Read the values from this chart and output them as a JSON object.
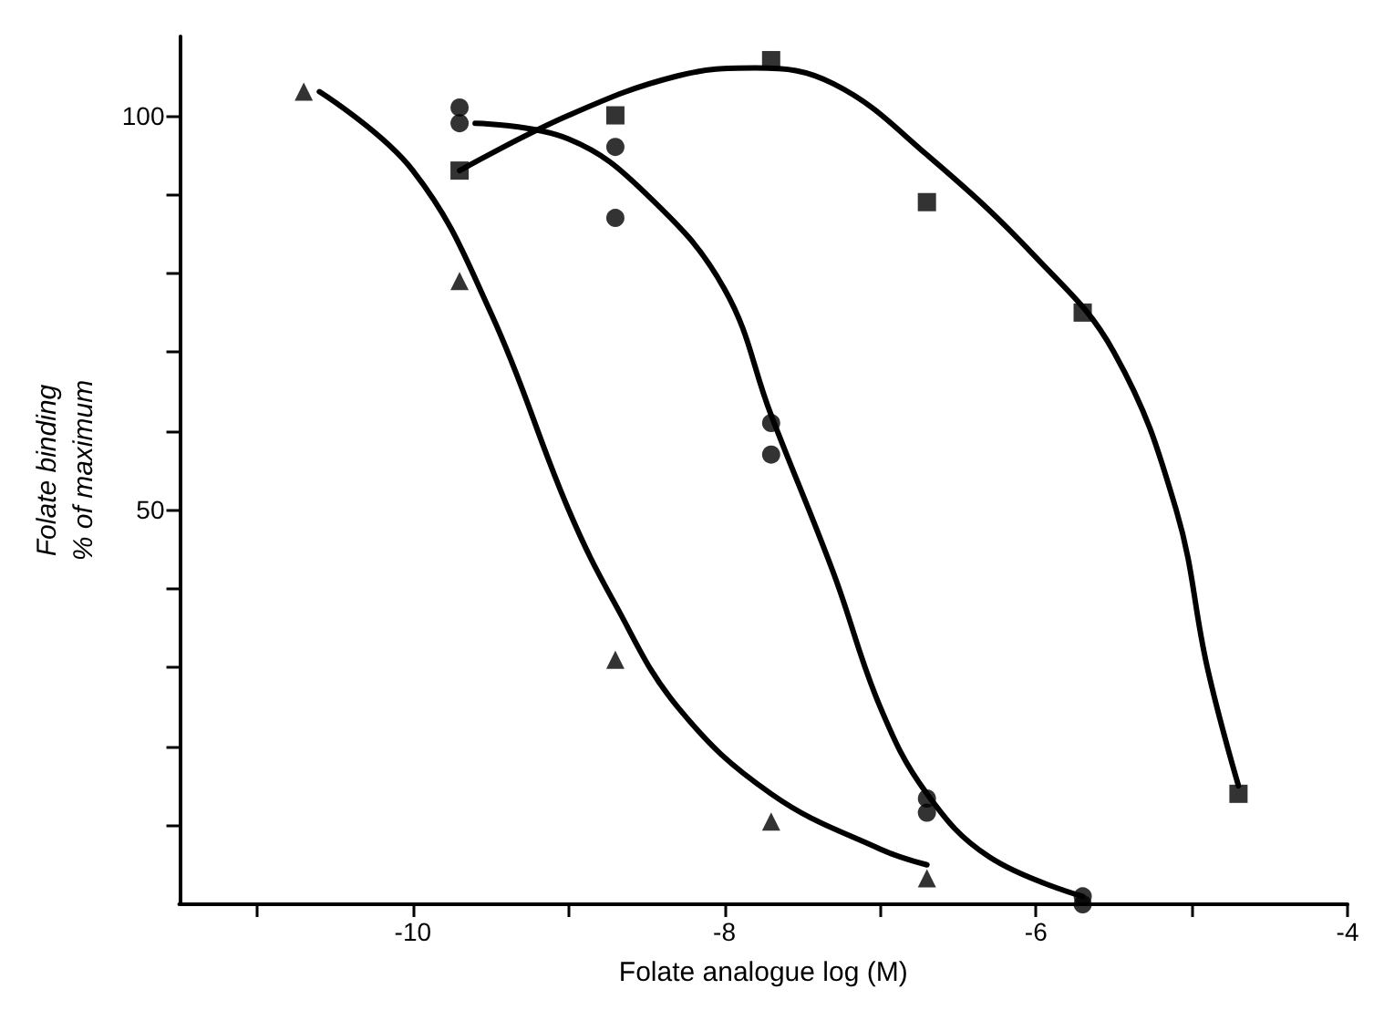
{
  "chart_data": {
    "type": "scatter",
    "xlabel": "Folate analogue log (M)",
    "ylabel": "Folate binding\n% of maximum",
    "xlim": [
      -11.5,
      -4
    ],
    "ylim": [
      0,
      110
    ],
    "xticks": [
      {
        "value": -11,
        "label": null
      },
      -10,
      {
        "value": -9,
        "label": null
      },
      -8,
      {
        "value": -7,
        "label": null
      },
      -6,
      {
        "value": -5,
        "label": null
      },
      -4
    ],
    "yticks": [
      {
        "value": 10,
        "label": null
      },
      {
        "value": 20,
        "label": null
      },
      {
        "value": 30,
        "label": null
      },
      {
        "value": 40,
        "label": null
      },
      50,
      {
        "value": 60,
        "label": null
      },
      {
        "value": 70,
        "label": null
      },
      {
        "value": 80,
        "label": null
      },
      {
        "value": 90,
        "label": null
      },
      100
    ],
    "grid": false,
    "series": [
      {
        "marker": "triangle",
        "color": "#000000",
        "x": [
          -10.7,
          -9.7,
          -8.7,
          -7.7,
          -6.7
        ],
        "values": [
          103,
          79,
          31,
          10.5,
          3.3
        ]
      },
      {
        "marker": "circle",
        "color": "#000000",
        "x": [
          -9.7,
          -9.7,
          -8.7,
          -8.7,
          -7.7,
          -7.7,
          -6.7,
          -6.7,
          -5.7,
          -5.7
        ],
        "values": [
          101,
          99,
          96,
          87,
          61,
          57,
          13.4,
          11.6,
          1,
          0
        ]
      },
      {
        "marker": "square",
        "color": "#000000",
        "x": [
          -9.7,
          -8.7,
          -7.7,
          -6.7,
          -5.7,
          -4.7
        ],
        "values": [
          93,
          100,
          107,
          89,
          75,
          14
        ]
      },
      {
        "type": "line",
        "marker": "none",
        "color": "#000000",
        "x": [
          -10.6,
          -10,
          -9.5,
          -9,
          -8.7,
          -8.3,
          -7.7,
          -7,
          -6.7
        ],
        "values": [
          103,
          93,
          75,
          50,
          38,
          25,
          14,
          7,
          5
        ]
      },
      {
        "type": "line",
        "marker": "none",
        "color": "#000000",
        "x": [
          -9.6,
          -9,
          -8.5,
          -8,
          -7.7,
          -7.3,
          -7,
          -6.7,
          -6.3,
          -5.7
        ],
        "values": [
          99,
          97,
          90,
          78,
          62,
          42,
          25,
          14,
          6,
          1
        ]
      },
      {
        "type": "line",
        "marker": "none",
        "color": "#000000",
        "x": [
          -9.7,
          -9,
          -8.3,
          -7.8,
          -7.3,
          -6.7,
          -6,
          -5.5,
          -5.1,
          -4.9,
          -4.7
        ],
        "values": [
          93,
          100,
          105,
          106,
          104,
          95,
          82,
          70,
          50,
          30,
          15
        ]
      }
    ]
  }
}
